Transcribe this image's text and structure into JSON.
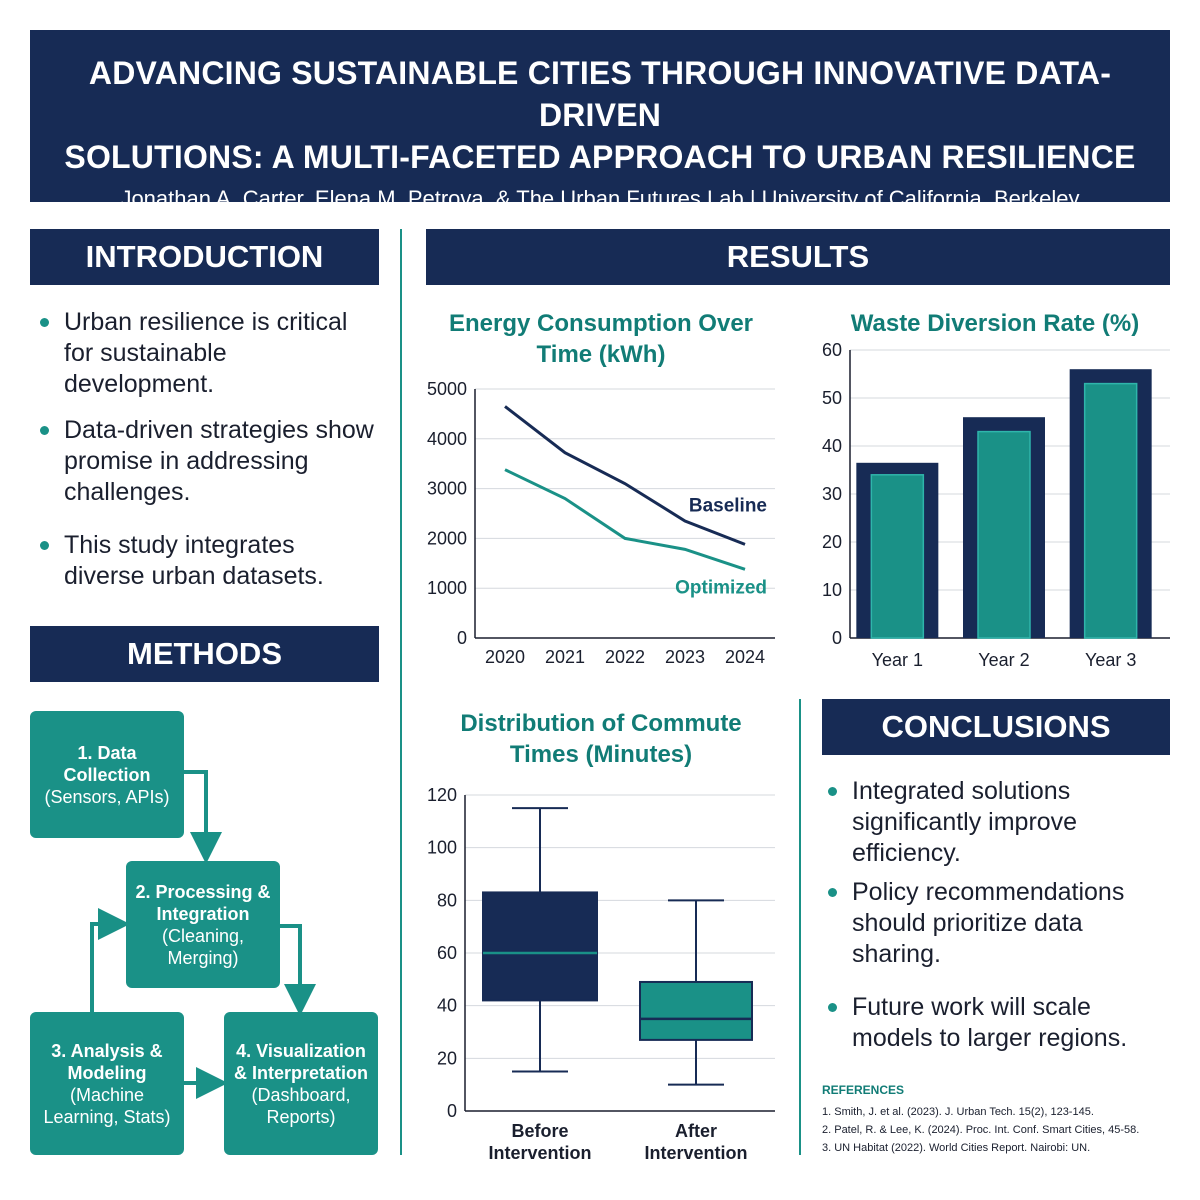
{
  "header": {
    "title_line1": "ADVANCING SUSTAINABLE CITIES THROUGH INNOVATIVE DATA-DRIVEN",
    "title_line2": "SOLUTIONS: A MULTI-FACETED APPROACH TO URBAN RESILIENCE",
    "authors": "Jonathan A. Carter, Elena M. Petrova, & The Urban Futures Lab | University of California, Berkeley"
  },
  "introduction": {
    "heading": "INTRODUCTION",
    "bullets": [
      [
        "Urban resilience is critical",
        "for sustainable",
        "development."
      ],
      [
        "Data-driven strategies show",
        "promise in addressing",
        "challenges."
      ],
      [
        "This study integrates",
        "diverse urban datasets."
      ]
    ]
  },
  "methods": {
    "heading": "METHODS",
    "steps": [
      {
        "title": [
          "1. Data",
          "Collection"
        ],
        "sub": [
          "(Sensors, APIs)"
        ]
      },
      {
        "title": [
          "2. Processing &",
          "Integration"
        ],
        "sub": [
          "(Cleaning,",
          "Merging)"
        ]
      },
      {
        "title": [
          "3. Analysis &",
          "Modeling"
        ],
        "sub": [
          "(Machine",
          "Learning, Stats)"
        ]
      },
      {
        "title": [
          "4. Visualization",
          "& Interpretation"
        ],
        "sub": [
          "(Dashboard,",
          "Reports)"
        ]
      }
    ]
  },
  "results": {
    "heading": "RESULTS"
  },
  "conclusions": {
    "heading": "CONCLUSIONS",
    "bullets": [
      [
        "Integrated solutions",
        "significantly improve",
        "efficiency."
      ],
      [
        "Policy recommendations",
        "should prioritize data",
        "sharing."
      ],
      [
        "Future work will scale",
        "models to larger regions."
      ]
    ]
  },
  "references": {
    "heading": "REFERENCES",
    "items": [
      "1. Smith, J. et al. (2023). J. Urban Tech. 15(2), 123-145.",
      "2. Patel, R. & Lee, K. (2024). Proc. Int. Conf. Smart Cities, 45-58.",
      "3. UN Habitat (2022). World Cities Report. Nairobi: UN."
    ]
  },
  "colors": {
    "navy": "#172b55",
    "teal": "#1a9187",
    "teal_text": "#117c76"
  },
  "chart_data": [
    {
      "type": "line",
      "title": [
        "Energy Consumption Over",
        "Time (kWh)"
      ],
      "x": [
        "2020",
        "2021",
        "2022",
        "2023",
        "2024"
      ],
      "ylim": [
        0,
        5000
      ],
      "yticks": [
        0,
        1000,
        2000,
        3000,
        4000,
        5000
      ],
      "grid": true,
      "series": [
        {
          "name": "Baseline",
          "values": [
            4650,
            3720,
            3100,
            2350,
            1880
          ],
          "color": "#172b55"
        },
        {
          "name": "Optimized",
          "values": [
            3380,
            2800,
            2000,
            1780,
            1380
          ],
          "color": "#1a9187"
        }
      ]
    },
    {
      "type": "bar",
      "title": [
        "Waste Diversion Rate (%)"
      ],
      "categories": [
        "Year 1",
        "Year 2",
        "Year 3"
      ],
      "values": [
        34,
        43,
        53
      ],
      "outer_values": [
        36.5,
        46,
        56
      ],
      "ylim": [
        0,
        60
      ],
      "yticks": [
        0,
        10,
        20,
        30,
        40,
        50,
        60
      ],
      "grid": true
    },
    {
      "type": "box",
      "title": [
        "Distribution of Commute",
        "Times (Minutes)"
      ],
      "categories": [
        [
          "Before",
          "Intervention"
        ],
        [
          "After",
          "Intervention"
        ]
      ],
      "ylim": [
        0,
        120
      ],
      "yticks": [
        0,
        20,
        40,
        60,
        80,
        100,
        120
      ],
      "grid": true,
      "boxes": [
        {
          "min": 15,
          "q1": 42,
          "median": 60,
          "q3": 83,
          "max": 115,
          "color": "#172b55",
          "median_color": "#1a9187"
        },
        {
          "min": 10,
          "q1": 27,
          "median": 35,
          "q3": 49,
          "max": 80,
          "color": "#1a9187",
          "median_color": "#172b55"
        }
      ]
    }
  ]
}
